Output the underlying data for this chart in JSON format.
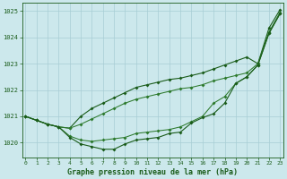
{
  "title": "Graphe pression niveau de la mer (hPa)",
  "background_color": "#cce8ec",
  "grid_color": "#a8cdd4",
  "line_color_dark": "#1a5c1a",
  "line_color_mid": "#2d7a2d",
  "xlim": [
    -0.3,
    23.3
  ],
  "ylim": [
    1019.45,
    1025.3
  ],
  "yticks": [
    1020,
    1021,
    1022,
    1023,
    1024,
    1025
  ],
  "xticks": [
    0,
    1,
    2,
    3,
    4,
    5,
    6,
    7,
    8,
    9,
    10,
    11,
    12,
    13,
    14,
    15,
    16,
    17,
    18,
    19,
    20,
    21,
    22,
    23
  ],
  "series1": [
    1021.0,
    1020.85,
    1020.7,
    1020.6,
    1020.55,
    1021.0,
    1021.3,
    1021.5,
    1021.7,
    1021.9,
    1022.1,
    1022.2,
    1022.3,
    1022.4,
    1022.45,
    1022.55,
    1022.65,
    1022.8,
    1022.95,
    1023.1,
    1023.25,
    1023.0,
    1024.35,
    1025.05
  ],
  "series2": [
    1021.0,
    1020.85,
    1020.7,
    1020.6,
    1020.55,
    1020.7,
    1020.9,
    1021.1,
    1021.3,
    1021.5,
    1021.65,
    1021.75,
    1021.85,
    1021.95,
    1022.05,
    1022.1,
    1022.2,
    1022.35,
    1022.45,
    1022.55,
    1022.65,
    1023.0,
    1024.2,
    1024.95
  ],
  "series3": [
    1021.0,
    1020.85,
    1020.7,
    1020.6,
    1020.25,
    1020.1,
    1020.05,
    1020.1,
    1020.15,
    1020.2,
    1020.35,
    1020.4,
    1020.45,
    1020.5,
    1020.6,
    1020.8,
    1021.0,
    1021.5,
    1021.75,
    1022.25,
    1022.5,
    1022.95,
    1024.15,
    1024.9
  ],
  "series4": [
    1021.0,
    1020.85,
    1020.7,
    1020.6,
    1020.2,
    1019.95,
    1019.85,
    1019.75,
    1019.75,
    1019.95,
    1020.1,
    1020.15,
    1020.2,
    1020.35,
    1020.4,
    1020.75,
    1020.95,
    1021.1,
    1021.5,
    1022.25,
    1022.5,
    1022.95,
    1024.15,
    1024.9
  ]
}
